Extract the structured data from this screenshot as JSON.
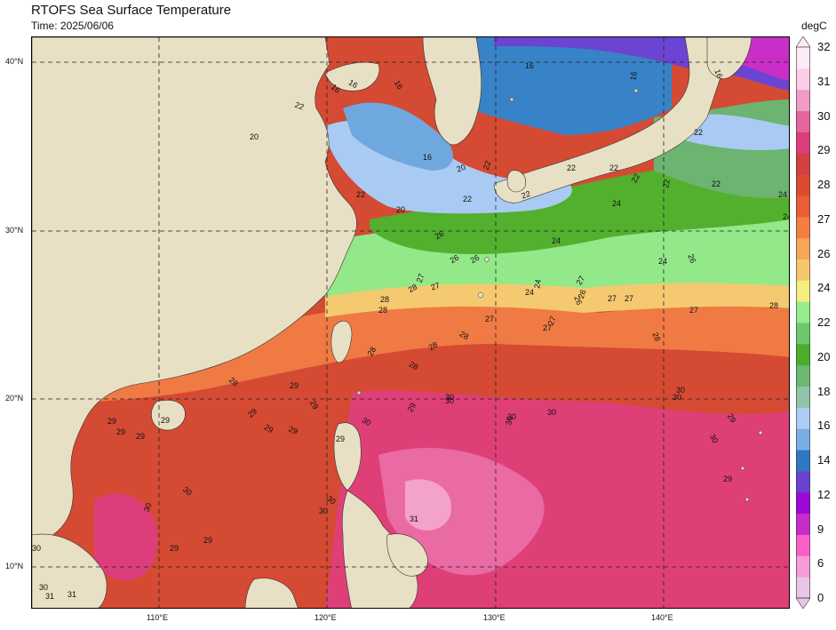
{
  "header": {
    "title": "RTOFS Sea Surface Temperature",
    "time": "Time: 2025/06/06"
  },
  "colorbar": {
    "unit": "degC",
    "tick_labels": [
      "0",
      "6",
      "9",
      "12",
      "14",
      "16",
      "18",
      "20",
      "22",
      "24",
      "26",
      "27",
      "28",
      "29",
      "30",
      "31",
      "32"
    ],
    "colors": [
      "#e7c6e6",
      "#f59cd7",
      "#fa5fc8",
      "#c62dc8",
      "#9b0ad6",
      "#6b42d2",
      "#2f78c2",
      "#7aaee2",
      "#aecdf5",
      "#8fc4a8",
      "#6bb870",
      "#4cad2a",
      "#6cc86a",
      "#95ec8a",
      "#f3ee7e",
      "#f6c66e",
      "#f6a654",
      "#f37e42",
      "#e95e35",
      "#de4a2f",
      "#d43f41",
      "#dd3d7a",
      "#e5659e",
      "#f09cc6",
      "#fbcde8",
      "#fdebf6"
    ]
  },
  "axes": {
    "lon_labels": [
      "110°E",
      "120°E",
      "130°E",
      "140°E"
    ],
    "lat_labels": [
      "40°N",
      "30°N",
      "20°N",
      "10°N"
    ]
  },
  "contour_labels": [
    "16",
    "16",
    "16",
    "16",
    "16",
    "16",
    "22",
    "20",
    "16",
    "20",
    "22",
    "20",
    "22",
    "22",
    "22",
    "22",
    "22",
    "22",
    "22",
    "22",
    "22",
    "24",
    "24",
    "24",
    "24",
    "24",
    "24",
    "24",
    "26",
    "26",
    "26",
    "26",
    "26",
    "26",
    "27",
    "27",
    "27",
    "27",
    "27",
    "27",
    "27",
    "27",
    "27",
    "28",
    "28",
    "28",
    "28",
    "28",
    "28",
    "28",
    "28",
    "28",
    "28",
    "29",
    "29",
    "29",
    "29",
    "29",
    "29",
    "29",
    "29",
    "29",
    "29",
    "29",
    "29",
    "29",
    "29",
    "29",
    "30",
    "30",
    "30",
    "30",
    "30",
    "30",
    "30",
    "30",
    "30",
    "30",
    "30",
    "30",
    "30",
    "30",
    "30",
    "31",
    "31",
    "31"
  ],
  "land_color": "#e8e0c4"
}
